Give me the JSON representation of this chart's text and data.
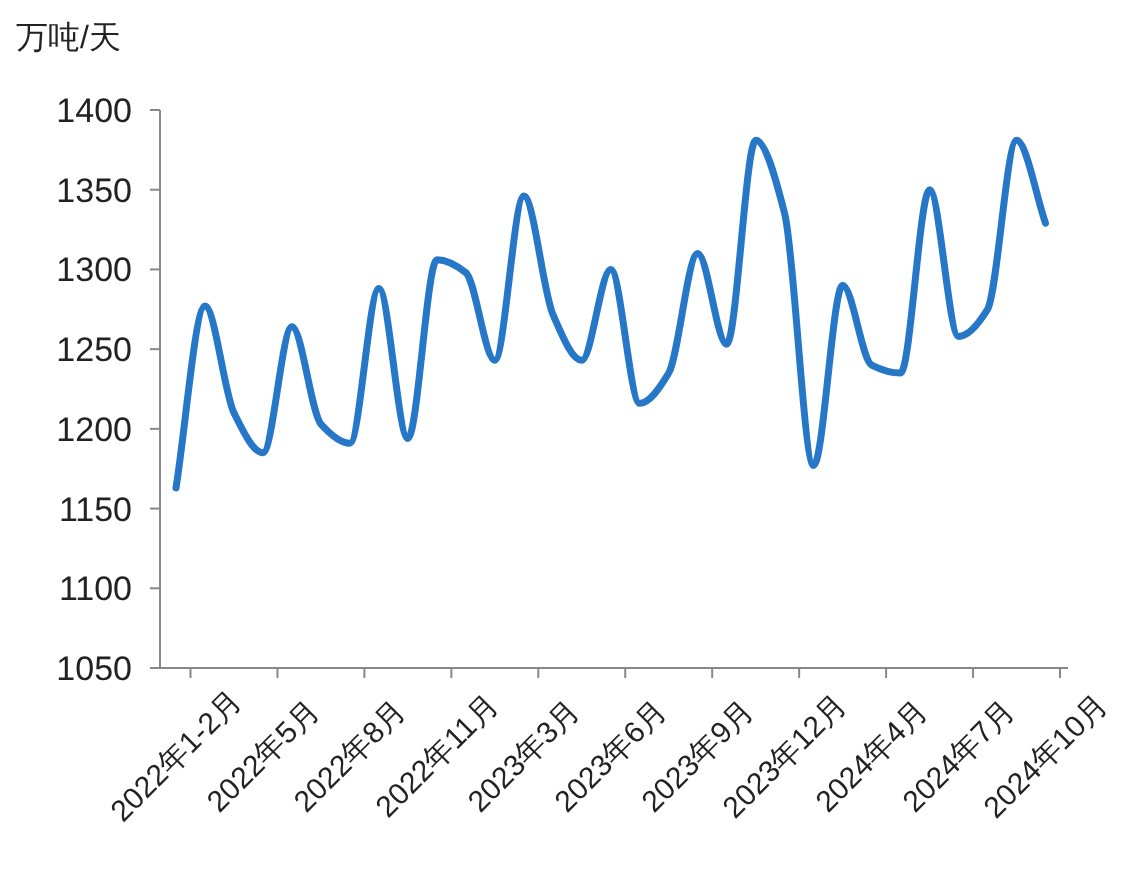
{
  "chart_data": {
    "type": "line",
    "ylabel": "万吨/天",
    "categories": [
      "2022年1-2月",
      null,
      null,
      "2022年5月",
      null,
      null,
      "2022年8月",
      null,
      null,
      "2022年11月",
      null,
      null,
      "2023年3月",
      null,
      null,
      "2023年6月",
      null,
      null,
      "2023年9月",
      null,
      null,
      "2023年12月",
      null,
      null,
      "2024年4月",
      null,
      null,
      "2024年7月",
      null,
      null,
      "2024年10月"
    ],
    "values": [
      1163,
      1277,
      1210,
      1185,
      1264,
      1203,
      1191,
      1288,
      1194,
      1306,
      1298,
      1243,
      1346,
      1272,
      1243,
      1300,
      1216,
      1235,
      1310,
      1253,
      1381,
      1335,
      1177,
      1290,
      1240,
      1235,
      1350,
      1258,
      1275,
      1381,
      1329
    ],
    "color": "#2677c8",
    "ylim": [
      1050,
      1400
    ],
    "yticks": [
      1050,
      1100,
      1150,
      1200,
      1250,
      1300,
      1350,
      1400
    ],
    "marker": "none",
    "line_style": "solid"
  }
}
